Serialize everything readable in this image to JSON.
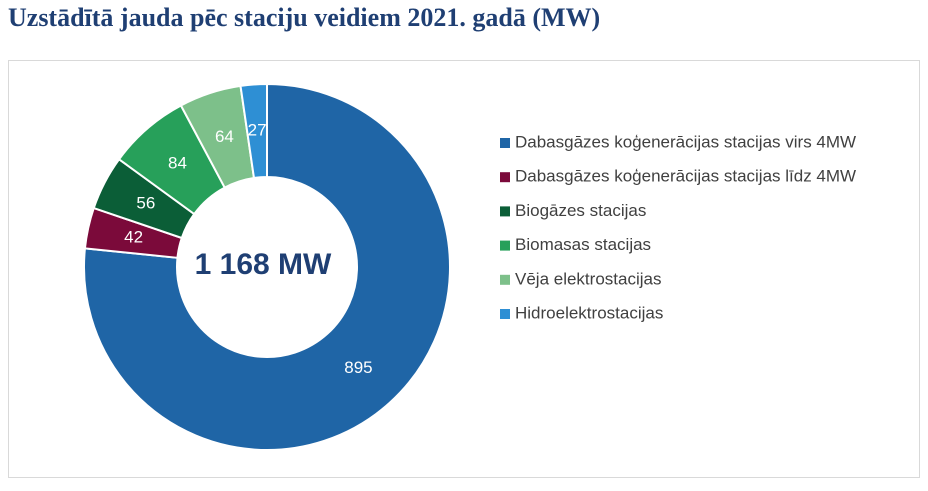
{
  "chart_data": {
    "type": "donut",
    "title": "Uzstādītā jauda pēc staciju veidiem 2021. gadā (MW)",
    "center_label": "1 168 MW",
    "categories": [
      "Dabasgāzes koģenerācijas stacijas virs 4MW",
      "Dabasgāzes koģenerācijas stacijas līdz 4MW",
      "Biogāzes stacijas",
      "Biomasas stacijas",
      "Vēja elektrostacijas",
      "Hidroelektrostacijas"
    ],
    "values": [
      895,
      42,
      56,
      84,
      64,
      27
    ],
    "colors": [
      "#1f65a6",
      "#7b0a3a",
      "#0b5e37",
      "#27a05a",
      "#7dc08a",
      "#2e8fd4"
    ],
    "legend": "right"
  }
}
